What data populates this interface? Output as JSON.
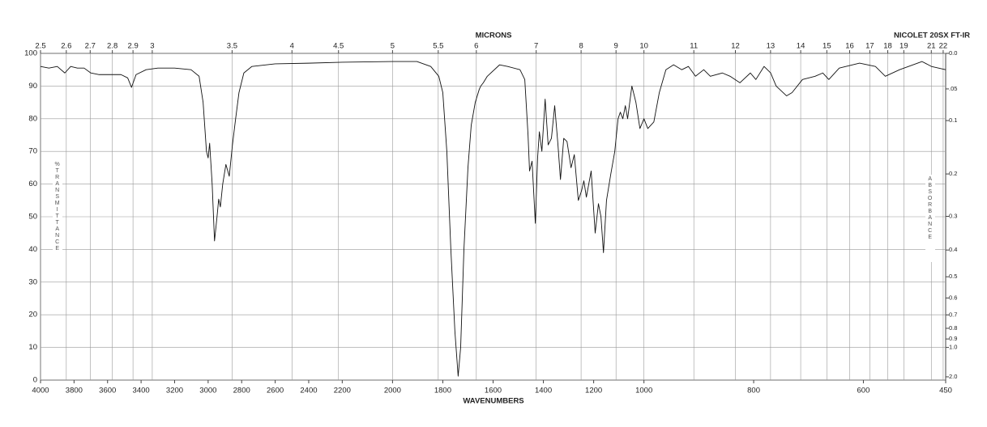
{
  "chart_data": {
    "type": "line",
    "title": "NICOLET 20SX FT-IR",
    "x_label": "WAVENUMBERS",
    "x2_label": "MICRONS",
    "y_label": "%TRANSMITTANCE",
    "y2_label": "ABSORBANCE",
    "color": "#111111",
    "grid": true,
    "xlim": [
      4000,
      450
    ],
    "xscale": "piecewise",
    "xbreaks": [
      2200,
      1000
    ],
    "xticks": [
      4000,
      3800,
      3600,
      3400,
      3200,
      3000,
      2800,
      2600,
      2400,
      2200,
      2000,
      1800,
      1600,
      1400,
      1200,
      1000,
      800,
      600,
      450
    ],
    "x2_scale": "microns",
    "x2ticks": [
      2.5,
      2.6,
      2.7,
      2.8,
      2.9,
      3,
      3.5,
      4,
      4.5,
      5,
      5.5,
      6,
      7,
      8,
      9,
      10,
      11,
      12,
      13,
      14,
      15,
      16,
      17,
      18,
      19,
      21,
      22
    ],
    "ylim": [
      0,
      100
    ],
    "yticks": [
      0,
      10,
      20,
      30,
      40,
      50,
      60,
      70,
      80,
      90,
      100
    ],
    "y2_scale": "absorbance",
    "y2ticks": [
      {
        "value": 0,
        "label": "0.0"
      },
      {
        "value": 0.05,
        "label": ".05"
      },
      0.1,
      0.2,
      0.3,
      0.4,
      0.5,
      0.6,
      0.7,
      0.8,
      0.9,
      {
        "value": 1,
        "label": "1.0"
      },
      {
        "value": 2,
        "label": "2.0"
      }
    ],
    "x": [
      4000,
      3950,
      3900,
      3855,
      3820,
      3780,
      3740,
      3700,
      3650,
      3600,
      3520,
      3480,
      3457,
      3430,
      3370,
      3300,
      3200,
      3102,
      3054,
      3030,
      3010,
      3000,
      2991,
      2976,
      2962,
      2947,
      2937,
      2927,
      2913,
      2894,
      2874,
      2855,
      2836,
      2816,
      2787,
      2739,
      2600,
      2400,
      2200,
      2000,
      1903,
      1848,
      1816,
      1800,
      1784,
      1768,
      1752,
      1739,
      1729,
      1716,
      1700,
      1687,
      1671,
      1655,
      1649,
      1639,
      1623,
      1574,
      1542,
      1493,
      1474,
      1461,
      1455,
      1445,
      1432,
      1423,
      1416,
      1406,
      1393,
      1381,
      1368,
      1355,
      1342,
      1332,
      1319,
      1306,
      1290,
      1277,
      1261,
      1248,
      1239,
      1229,
      1210,
      1194,
      1181,
      1171,
      1161,
      1149,
      1132,
      1116,
      1103,
      1094,
      1084,
      1074,
      1065,
      1048,
      1032,
      1016,
      1000,
      993,
      982,
      972,
      960,
      946,
      931,
      919,
      906,
      891,
      879,
      857,
      843,
      825,
      806,
      796,
      781,
      769,
      759,
      740,
      730,
      711,
      688,
      674,
      663,
      644,
      607,
      578,
      560,
      534,
      493,
      476,
      450
    ],
    "values": [
      96,
      95.5,
      96,
      94,
      96,
      95.5,
      95.5,
      94,
      93.5,
      93.5,
      93.5,
      92.5,
      89.6,
      93.5,
      95,
      95.5,
      95.5,
      95,
      93,
      85,
      70,
      68,
      72.5,
      60,
      42.6,
      50,
      55.4,
      53,
      60,
      66,
      62.4,
      72,
      80,
      88,
      94,
      96,
      96.8,
      97,
      97.3,
      97.5,
      97.5,
      96,
      93,
      88,
      70,
      40,
      15,
      1.2,
      10,
      40,
      65,
      78,
      85,
      89,
      90,
      91,
      93,
      96.5,
      96,
      95,
      92,
      75,
      64,
      67,
      48,
      68,
      76,
      70,
      86,
      72,
      74,
      84,
      72,
      61.4,
      74,
      73,
      65,
      69,
      55,
      58,
      61,
      56,
      64,
      45,
      54,
      50,
      39,
      55,
      63,
      70,
      80,
      82,
      80,
      84,
      80,
      90,
      85,
      77,
      80,
      77,
      79,
      88,
      95,
      96.5,
      95,
      96,
      93,
      95,
      93,
      94,
      93,
      91,
      94,
      92,
      96,
      94,
      90,
      87,
      88,
      92,
      93,
      94,
      92,
      95.5,
      97,
      96,
      93,
      95,
      97.5,
      96,
      95
    ]
  }
}
